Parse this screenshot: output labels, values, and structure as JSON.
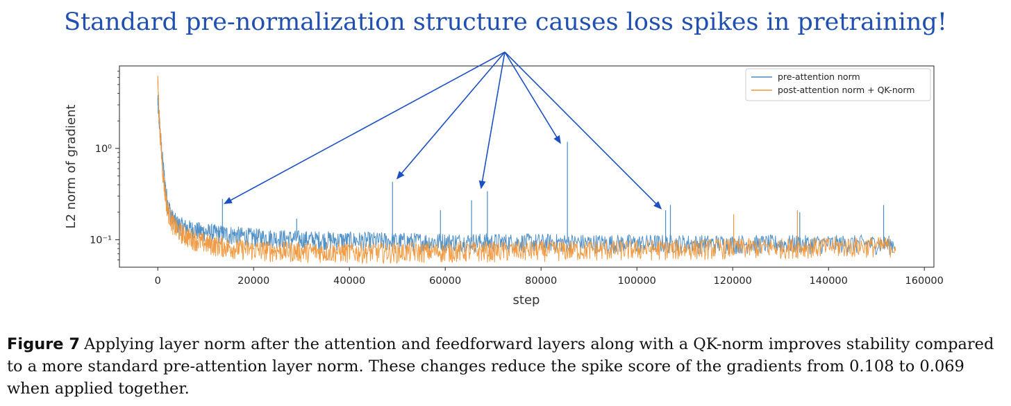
{
  "headline": "Standard pre-normalization structure causes loss spikes in pretraining!",
  "caption": {
    "label": "Figure 7",
    "text": "Applying layer norm after the attention and feedforward layers along with a QK-norm improves stability compared to a more standard pre-attention layer norm. These changes reduce the spike score of the gradients from 0.108 to 0.069 when applied together."
  },
  "colors": {
    "series1": "#4a8cc4",
    "series2": "#f0973a",
    "arrow": "#1b4fc4",
    "headline": "#1f4fb0"
  },
  "chart_data": {
    "type": "line",
    "title": "",
    "xlabel": "step",
    "ylabel": "L2 norm of gradient",
    "yscale": "log",
    "xlim": [
      -8000,
      162000
    ],
    "ylim": [
      0.05,
      8.0
    ],
    "xticks": [
      0,
      20000,
      40000,
      60000,
      80000,
      100000,
      120000,
      140000,
      160000
    ],
    "xtick_labels": [
      "0",
      "20000",
      "40000",
      "60000",
      "80000",
      "100000",
      "120000",
      "140000",
      "160000"
    ],
    "yticks": [
      1.0,
      0.1
    ],
    "ytick_labels": [
      "10⁰",
      "10⁻¹"
    ],
    "legend_position": "top-right",
    "series": [
      {
        "name": "pre-attention norm",
        "x": [
          0,
          300,
          600,
          1000,
          1500,
          2000,
          3000,
          4000,
          6000,
          8000,
          10000,
          15000,
          20000,
          30000,
          40000,
          50000,
          60000,
          70000,
          80000,
          90000,
          100000,
          110000,
          120000,
          130000,
          140000,
          154000
        ],
        "y": [
          3.3,
          2.0,
          1.3,
          0.75,
          0.42,
          0.26,
          0.175,
          0.15,
          0.135,
          0.128,
          0.122,
          0.115,
          0.108,
          0.102,
          0.099,
          0.097,
          0.096,
          0.095,
          0.094,
          0.093,
          0.092,
          0.092,
          0.091,
          0.091,
          0.091,
          0.09
        ],
        "spikes": [
          {
            "x": 13500,
            "y": 0.28
          },
          {
            "x": 29000,
            "y": 0.17
          },
          {
            "x": 49000,
            "y": 0.43
          },
          {
            "x": 59000,
            "y": 0.21
          },
          {
            "x": 65500,
            "y": 0.27
          },
          {
            "x": 68800,
            "y": 0.34
          },
          {
            "x": 85500,
            "y": 1.18
          },
          {
            "x": 106000,
            "y": 0.21
          },
          {
            "x": 107000,
            "y": 0.24
          },
          {
            "x": 134000,
            "y": 0.2
          },
          {
            "x": 151500,
            "y": 0.24
          }
        ]
      },
      {
        "name": "post-attention norm +  QK-norm",
        "x": [
          0,
          300,
          600,
          1000,
          1500,
          2000,
          3000,
          4000,
          6000,
          8000,
          10000,
          15000,
          20000,
          30000,
          40000,
          50000,
          60000,
          70000,
          80000,
          90000,
          100000,
          110000,
          120000,
          130000,
          140000,
          154000
        ],
        "y": [
          5.5,
          2.4,
          1.2,
          0.6,
          0.34,
          0.22,
          0.155,
          0.13,
          0.11,
          0.1,
          0.092,
          0.083,
          0.078,
          0.075,
          0.074,
          0.074,
          0.075,
          0.076,
          0.077,
          0.078,
          0.079,
          0.08,
          0.082,
          0.083,
          0.084,
          0.086
        ],
        "spikes": [
          {
            "x": 120200,
            "y": 0.19
          },
          {
            "x": 133500,
            "y": 0.21
          }
        ]
      }
    ],
    "annotations": [
      {
        "text": "",
        "target_x": 14000,
        "target_y": 0.25
      },
      {
        "text": "",
        "target_x": 50000,
        "target_y": 0.47
      },
      {
        "text": "",
        "target_x": 67500,
        "target_y": 0.37
      },
      {
        "text": "",
        "target_x": 84000,
        "target_y": 1.15
      },
      {
        "text": "",
        "target_x": 105000,
        "target_y": 0.22
      }
    ]
  }
}
